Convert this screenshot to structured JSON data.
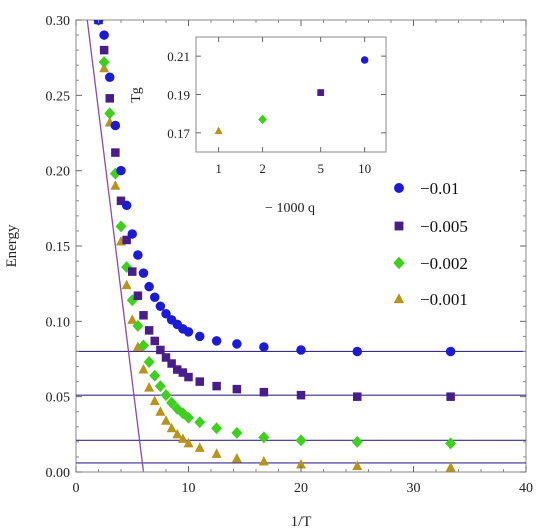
{
  "chart_data": [
    {
      "type": "scatter",
      "xlabel": "1/T",
      "ylabel": "Energy",
      "xlim": [
        0,
        40
      ],
      "ylim": [
        0,
        0.3
      ],
      "x_ticks": [
        "0",
        "10",
        "20",
        "30",
        "40"
      ],
      "y_ticks": [
        "0.00",
        "0.05",
        "0.10",
        "0.15",
        "0.20",
        "0.25",
        "0.30"
      ],
      "legend_position": "right-middle",
      "series": [
        {
          "name": "−0.01",
          "marker": "circle",
          "color": "#1b1bd6",
          "asymptote": 0.08,
          "x": [
            2.0,
            2.5,
            3.0,
            3.5,
            4.0,
            4.5,
            5.0,
            5.5,
            6.0,
            6.5,
            7.0,
            7.5,
            8.0,
            8.5,
            9.0,
            9.5,
            10.0,
            11.0,
            12.5,
            14.3,
            16.7,
            20.0,
            25.0,
            33.3
          ],
          "y": [
            0.3,
            0.29,
            0.262,
            0.23,
            0.2,
            0.177,
            0.158,
            0.144,
            0.132,
            0.123,
            0.116,
            0.11,
            0.105,
            0.101,
            0.098,
            0.095,
            0.093,
            0.09,
            0.087,
            0.085,
            0.083,
            0.081,
            0.08,
            0.08
          ]
        },
        {
          "name": "−0.005",
          "marker": "square",
          "color": "#4a1e8a",
          "asymptote": 0.051,
          "x": [
            2.0,
            2.5,
            3.0,
            3.5,
            4.0,
            4.5,
            5.0,
            5.5,
            6.0,
            6.5,
            7.0,
            7.5,
            8.0,
            8.5,
            9.0,
            9.5,
            10.0,
            11.0,
            12.5,
            14.3,
            16.7,
            20.0,
            25.0,
            33.3
          ],
          "y": [
            0.3,
            0.28,
            0.248,
            0.212,
            0.18,
            0.154,
            0.133,
            0.117,
            0.104,
            0.094,
            0.087,
            0.081,
            0.076,
            0.072,
            0.068,
            0.066,
            0.063,
            0.06,
            0.057,
            0.055,
            0.053,
            0.051,
            0.05,
            0.05
          ]
        },
        {
          "name": "−0.002",
          "marker": "diamond",
          "color": "#3ecf1f",
          "asymptote": 0.021,
          "x": [
            2.0,
            2.5,
            3.0,
            3.5,
            4.0,
            4.5,
            5.0,
            5.5,
            6.0,
            6.5,
            7.0,
            7.5,
            8.0,
            8.5,
            9.0,
            9.5,
            10.0,
            11.0,
            12.5,
            14.3,
            16.7,
            20.0,
            25.0,
            33.3
          ],
          "y": [
            0.3,
            0.272,
            0.238,
            0.198,
            0.163,
            0.136,
            0.114,
            0.097,
            0.084,
            0.073,
            0.064,
            0.057,
            0.051,
            0.046,
            0.042,
            0.039,
            0.036,
            0.033,
            0.029,
            0.026,
            0.023,
            0.021,
            0.02,
            0.019
          ]
        },
        {
          "name": "−0.001",
          "marker": "triangle",
          "color": "#b8941c",
          "asymptote": 0.006,
          "x": [
            2.0,
            2.5,
            3.0,
            3.5,
            4.0,
            4.5,
            5.0,
            5.5,
            6.0,
            6.5,
            7.0,
            7.5,
            8.0,
            8.5,
            9.0,
            9.5,
            10.0,
            11.0,
            12.5,
            14.3,
            16.7,
            20.0,
            25.0,
            33.3
          ],
          "y": [
            0.3,
            0.268,
            0.232,
            0.19,
            0.153,
            0.124,
            0.101,
            0.083,
            0.068,
            0.056,
            0.047,
            0.04,
            0.034,
            0.029,
            0.025,
            0.022,
            0.019,
            0.016,
            0.012,
            0.009,
            0.007,
            0.005,
            0.004,
            0.003
          ]
        }
      ],
      "reference_line": {
        "color": "#8a4aa8",
        "x": [
          1.0,
          6.0
        ],
        "y": [
          0.3,
          0.0
        ]
      }
    },
    {
      "type": "scatter",
      "xlabel": "− 1000 q",
      "ylabel": "Tg",
      "x_ticks": [
        "1",
        "2",
        "5",
        "10"
      ],
      "y_ticks": [
        "0.17",
        "0.19",
        "0.21"
      ],
      "ylim": [
        0.16,
        0.22
      ],
      "x_scale": "log",
      "xlim": [
        0.7,
        14
      ],
      "points": [
        {
          "x": 1,
          "y": 0.171,
          "marker": "triangle",
          "color": "#b8941c"
        },
        {
          "x": 2,
          "y": 0.177,
          "marker": "diamond",
          "color": "#3ecf1f"
        },
        {
          "x": 5,
          "y": 0.191,
          "marker": "square",
          "color": "#4a1e8a"
        },
        {
          "x": 10,
          "y": 0.208,
          "marker": "circle",
          "color": "#1b1bd6"
        }
      ]
    }
  ]
}
